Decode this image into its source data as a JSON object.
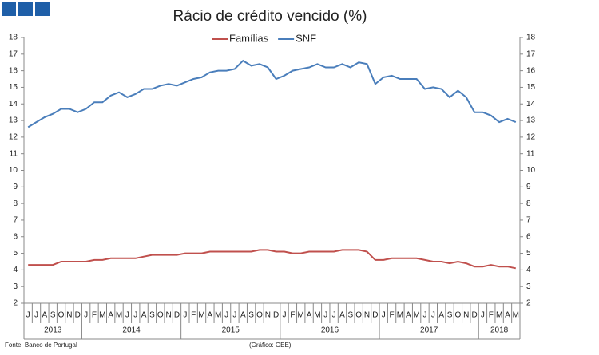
{
  "chart_data": {
    "type": "line",
    "title": "Rácio de crédito vencido (%)",
    "categories": [
      "J",
      "J",
      "A",
      "S",
      "O",
      "N",
      "D",
      "J",
      "F",
      "M",
      "A",
      "M",
      "J",
      "J",
      "A",
      "S",
      "O",
      "N",
      "D",
      "J",
      "F",
      "M",
      "A",
      "M",
      "J",
      "J",
      "A",
      "S",
      "O",
      "N",
      "D",
      "J",
      "F",
      "M",
      "A",
      "M",
      "J",
      "J",
      "A",
      "S",
      "O",
      "N",
      "D",
      "J",
      "F",
      "M",
      "A",
      "M",
      "J",
      "J",
      "A",
      "S",
      "O",
      "N",
      "D",
      "J",
      "F",
      "M",
      "A",
      "M"
    ],
    "year_groups": [
      {
        "label": "2013",
        "span": 7
      },
      {
        "label": "2014",
        "span": 12
      },
      {
        "label": "2015",
        "span": 12
      },
      {
        "label": "2016",
        "span": 12
      },
      {
        "label": "2017",
        "span": 12
      },
      {
        "label": "2018",
        "span": 5
      }
    ],
    "series": [
      {
        "name": "Famílias",
        "color": "#c0504d",
        "values": [
          4.3,
          4.3,
          4.3,
          4.3,
          4.5,
          4.5,
          4.5,
          4.5,
          4.6,
          4.6,
          4.7,
          4.7,
          4.7,
          4.7,
          4.8,
          4.9,
          4.9,
          4.9,
          4.9,
          5.0,
          5.0,
          5.0,
          5.1,
          5.1,
          5.1,
          5.1,
          5.1,
          5.1,
          5.2,
          5.2,
          5.1,
          5.1,
          5.0,
          5.0,
          5.1,
          5.1,
          5.1,
          5.1,
          5.2,
          5.2,
          5.2,
          5.1,
          4.6,
          4.6,
          4.7,
          4.7,
          4.7,
          4.7,
          4.6,
          4.5,
          4.5,
          4.4,
          4.5,
          4.4,
          4.2,
          4.2,
          4.3,
          4.2,
          4.2,
          4.1
        ]
      },
      {
        "name": "SNF",
        "color": "#4a7ebb",
        "values": [
          12.6,
          12.9,
          13.2,
          13.4,
          13.7,
          13.7,
          13.5,
          13.7,
          14.1,
          14.1,
          14.5,
          14.7,
          14.4,
          14.6,
          14.9,
          14.9,
          15.1,
          15.2,
          15.1,
          15.3,
          15.5,
          15.6,
          15.9,
          16.0,
          16.0,
          16.1,
          16.6,
          16.3,
          16.4,
          16.2,
          15.5,
          15.7,
          16.0,
          16.1,
          16.2,
          16.4,
          16.2,
          16.2,
          16.4,
          16.2,
          16.5,
          16.4,
          15.2,
          15.6,
          15.7,
          15.5,
          15.5,
          15.5,
          14.9,
          15.0,
          14.9,
          14.4,
          14.8,
          14.4,
          13.5,
          13.5,
          13.3,
          12.9,
          13.1,
          12.9
        ]
      }
    ],
    "ylim": [
      2,
      18
    ],
    "yticks": [
      2,
      3,
      4,
      5,
      6,
      7,
      8,
      9,
      10,
      11,
      12,
      13,
      14,
      15,
      16,
      17,
      18
    ],
    "y2lim": [
      2,
      18
    ],
    "y2ticks": [
      2,
      3,
      4,
      5,
      6,
      7,
      8,
      9,
      10,
      11,
      12,
      13,
      14,
      15,
      16,
      17,
      18
    ],
    "legend": "top",
    "source": "Fonte: Banco de Portugal",
    "credit": "(Gráfico: GEE)"
  }
}
